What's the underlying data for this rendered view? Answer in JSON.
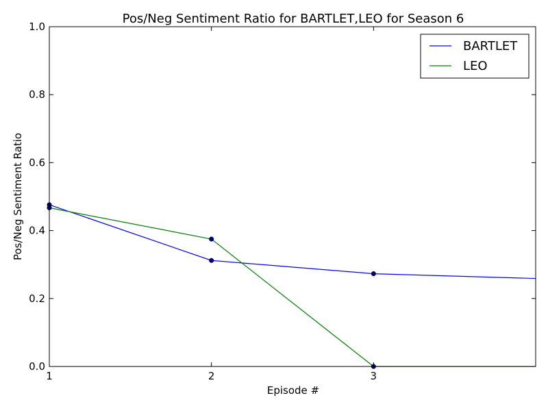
{
  "chart_data": {
    "type": "line",
    "title": "Pos/Neg Sentiment Ratio for BARTLET,LEO for Season 6",
    "xlabel": "Episode #",
    "ylabel": "Pos/Neg Sentiment Ratio",
    "xlim": [
      1,
      4
    ],
    "ylim": [
      0.0,
      1.0
    ],
    "xticks": [
      "1",
      "2",
      "3"
    ],
    "yticks": [
      "0.0",
      "0.2",
      "0.4",
      "0.6",
      "0.8",
      "1.0"
    ],
    "grid": false,
    "legend_position": "top-right",
    "x": [
      1,
      2,
      3,
      4
    ],
    "series": [
      {
        "name": "BARTLET",
        "color": "#0000ff",
        "values": [
          0.476,
          0.312,
          0.273,
          0.259
        ]
      },
      {
        "name": "LEO",
        "color": "#008000",
        "values": [
          0.467,
          0.375,
          0.0,
          0.0
        ]
      }
    ],
    "marker_color": "#000080"
  }
}
